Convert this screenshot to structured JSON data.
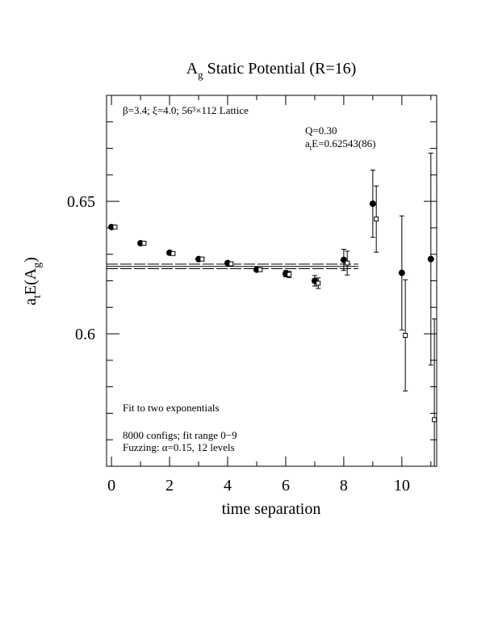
{
  "chart_data": {
    "type": "scatter",
    "title": {
      "main": "A",
      "sub": "g",
      "rest": " Static Potential (R=16)"
    },
    "x_label": "time separation",
    "y_label": {
      "main": "a",
      "sub": "t",
      "mid": "E(A",
      "sub2": "g",
      "end": ")"
    },
    "annotations": {
      "lattice": "β=3.4; ξ=4.0; 56³×112 Lattice",
      "q": "Q=0.30",
      "energy": {
        "main": "a",
        "sub": "t",
        "rest": "E=0.62543(86)"
      },
      "fit": "Fit to two exponentials",
      "configs": "8000 configs; fit range 0−9",
      "fuzzing": "Fuzzing: α=0.15, 12 levels"
    },
    "xlim": [
      -0.17,
      11.2
    ],
    "ylim": [
      0.55,
      0.69
    ],
    "xticks": [
      0,
      2,
      4,
      6,
      8,
      10
    ],
    "xminorticks": [
      1,
      3,
      5,
      7,
      9,
      11
    ],
    "yticks": [
      {
        "value": 0.6,
        "label": "0.6"
      },
      {
        "value": 0.65,
        "label": "0.65"
      }
    ],
    "yminorticks": [
      0.56,
      0.57,
      0.58,
      0.59,
      0.61,
      0.62,
      0.63,
      0.64,
      0.66,
      0.67,
      0.68
    ],
    "fit_line": {
      "value": 0.62543,
      "error": 0.00086,
      "xmax": 8.5
    },
    "color": "#000000",
    "series": [
      {
        "marker": "circle",
        "x": [
          0,
          1,
          2,
          3,
          4,
          5,
          6,
          7,
          8,
          9,
          10,
          11
        ],
        "values": [
          0.6403,
          0.6342,
          0.6306,
          0.6282,
          0.6267,
          0.6242,
          0.6227,
          0.62,
          0.6279,
          0.6491,
          0.623,
          0.6282
        ],
        "errors": [
          0.0003,
          0.0004,
          0.0005,
          0.0005,
          0.0006,
          0.0006,
          0.0012,
          0.002,
          0.004,
          0.0127,
          0.0215,
          0.04
        ]
      },
      {
        "marker": "square",
        "x": [
          0.12,
          1.12,
          2.12,
          3.12,
          4.12,
          5.12,
          6.12,
          7.12,
          8.12,
          9.12,
          10.12,
          11.12
        ],
        "values": [
          0.6403,
          0.6342,
          0.6303,
          0.6282,
          0.6264,
          0.6242,
          0.6224,
          0.6191,
          0.6267,
          0.6433,
          0.5994,
          0.5676
        ],
        "errors": [
          0.0003,
          0.0004,
          0.0005,
          0.0005,
          0.0006,
          0.0006,
          0.0012,
          0.002,
          0.0045,
          0.0125,
          0.021,
          0.038
        ]
      }
    ]
  }
}
